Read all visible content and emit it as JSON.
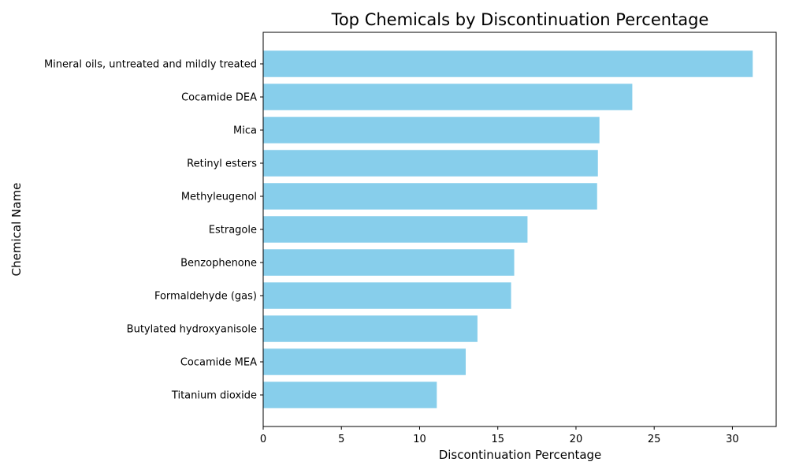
{
  "chart_data": {
    "type": "bar",
    "orientation": "horizontal",
    "title": "Top Chemicals by Discontinuation Percentage",
    "xlabel": "Discontinuation Percentage",
    "ylabel": "Chemical Name",
    "categories": [
      "Mineral oils, untreated and mildly treated",
      "Cocamide DEA",
      "Mica",
      "Retinyl esters",
      "Methyleugenol",
      "Estragole",
      "Benzophenone",
      "Formaldehyde (gas)",
      "Butylated hydroxyanisole",
      "Cocamide MEA",
      "Titanium dioxide"
    ],
    "values": [
      31.3,
      23.6,
      21.5,
      21.4,
      21.35,
      16.9,
      16.05,
      15.85,
      13.7,
      12.95,
      11.1
    ],
    "xlim": [
      0,
      32.8
    ],
    "xticks": [
      0,
      5,
      10,
      15,
      20,
      25,
      30
    ],
    "grid": false,
    "bar_color": "#87ceeb"
  }
}
